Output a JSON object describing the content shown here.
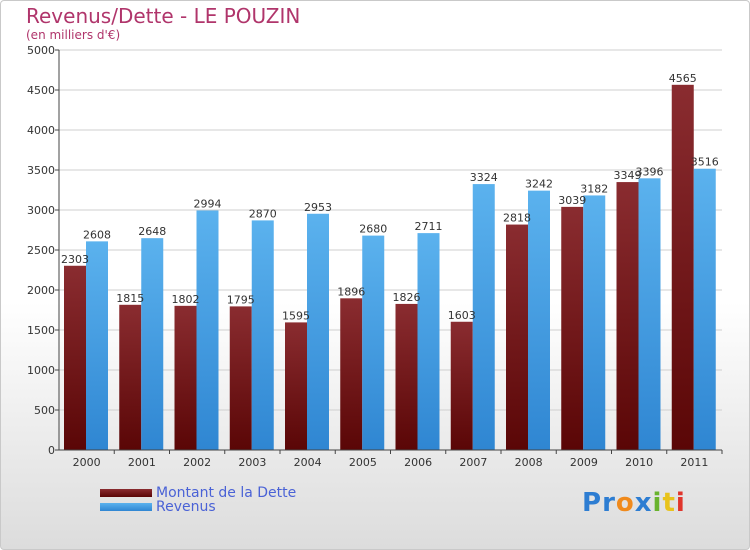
{
  "chart_data": {
    "type": "bar",
    "title": "Revenus/Dette - LE POUZIN",
    "subtitle": "(en milliers d'€)",
    "categories": [
      "2000",
      "2001",
      "2002",
      "2003",
      "2004",
      "2005",
      "2006",
      "2007",
      "2008",
      "2009",
      "2010",
      "2011"
    ],
    "series": [
      {
        "name": "Montant de la Dette",
        "color": "#6e1414",
        "values": [
          2303,
          1815,
          1802,
          1795,
          1595,
          1896,
          1826,
          1603,
          2818,
          3039,
          3349,
          4565
        ]
      },
      {
        "name": "Revenus",
        "color": "#4ba3e6",
        "values": [
          2608,
          2648,
          2994,
          2870,
          2953,
          2680,
          2711,
          3324,
          3242,
          3182,
          3396,
          3516
        ]
      }
    ],
    "yticks": [
      "0",
      "500",
      "1000",
      "1500",
      "2000",
      "2500",
      "3000",
      "3500",
      "4000",
      "4500",
      "5000"
    ],
    "ylim": [
      0,
      5000
    ],
    "grid": true,
    "legend": "bottom-left"
  },
  "logo": {
    "letters": [
      "P",
      "r",
      "o",
      "x",
      "i",
      "t",
      "i"
    ],
    "colors": [
      "#2d7dd2",
      "#2d7dd2",
      "#f08a1c",
      "#2d7dd2",
      "#69b32d",
      "#e8c31c",
      "#e0352c"
    ]
  }
}
